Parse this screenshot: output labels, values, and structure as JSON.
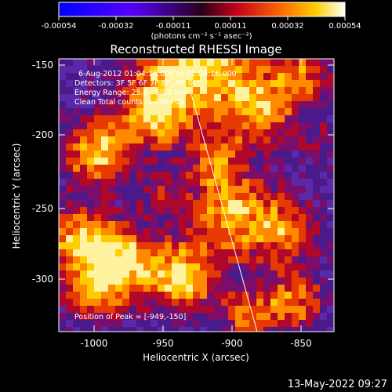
{
  "colorbar": {
    "tick_labels": [
      "-0.00054",
      "-0.00032",
      "-0.00011",
      "0.00011",
      "0.00032",
      "0.00054"
    ],
    "unit_label": "(photons cm⁻² s⁻¹ asec⁻²)"
  },
  "image": {
    "title": "Reconstructed RHESSI Image",
    "info_lines": [
      "6-Aug-2012 01:04:16.000 to 01:06:16.000",
      "Detectors: 3F 5F 6F 7F 8F, Att 0",
      "Energy Range: 25.0 - 50.0 keV",
      "Clean    Total counts: 1.74E+05"
    ],
    "peak_label": "Position of Peak = [-949,-150]"
  },
  "axes": {
    "xlabel": "Heliocentric X (arcsec)",
    "ylabel": "Heliocentric Y (arcsec)",
    "x_ticks": [
      "-1000",
      "-950",
      "-900",
      "-850"
    ],
    "y_ticks": [
      "-150",
      "-200",
      "-250",
      "-300"
    ]
  },
  "footer": {
    "timestamp": "13-May-2022 09:27"
  }
}
